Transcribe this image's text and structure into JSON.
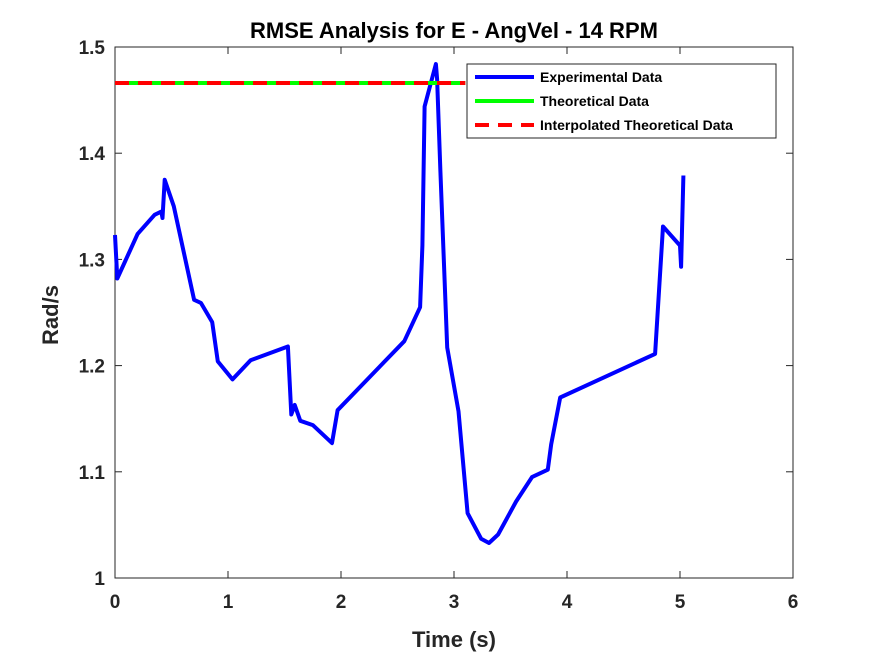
{
  "chart_data": {
    "type": "line",
    "title": "RMSE Analysis for E - AngVel - 14 RPM",
    "xlabel": "Time (s)",
    "ylabel": "Rad/s",
    "xlim": [
      0,
      6
    ],
    "ylim": [
      1,
      1.5
    ],
    "xticks": [
      "0",
      "1",
      "2",
      "3",
      "4",
      "5",
      "6"
    ],
    "yticks": [
      "1",
      "1.1",
      "1.2",
      "1.3",
      "1.4",
      "1.5"
    ],
    "grid": false,
    "legend_position": "top-right",
    "series": [
      {
        "name": "Experimental Data",
        "color": "#0000ff",
        "style": "solid",
        "x": [
          0.0,
          0.02,
          0.2,
          0.35,
          0.41,
          0.42,
          0.44,
          0.52,
          0.7,
          0.76,
          0.86,
          0.91,
          1.04,
          1.2,
          1.53,
          1.56,
          1.59,
          1.64,
          1.75,
          1.92,
          1.97,
          2.56,
          2.7,
          2.72,
          2.74,
          2.84,
          2.85,
          2.88,
          2.94,
          3.04,
          3.12,
          3.24,
          3.31,
          3.39,
          3.55,
          3.69,
          3.83,
          3.86,
          3.94,
          4.78,
          4.85,
          5.0,
          5.01,
          5.03
        ],
        "y": [
          1.323,
          1.282,
          1.324,
          1.342,
          1.345,
          1.339,
          1.375,
          1.35,
          1.262,
          1.259,
          1.241,
          1.204,
          1.187,
          1.205,
          1.218,
          1.154,
          1.163,
          1.148,
          1.144,
          1.127,
          1.158,
          1.223,
          1.255,
          1.313,
          1.444,
          1.484,
          1.47,
          1.383,
          1.217,
          1.157,
          1.061,
          1.037,
          1.033,
          1.041,
          1.072,
          1.095,
          1.102,
          1.126,
          1.17,
          1.211,
          1.331,
          1.313,
          1.293,
          1.379
        ]
      },
      {
        "name": "Theoretical Data",
        "color": "#00ff00",
        "style": "solid",
        "x": [
          0,
          3.1
        ],
        "y": [
          1.4661,
          1.4661
        ]
      },
      {
        "name": "Interpolated Theoretical Data",
        "color": "#ff0000",
        "style": "dashed",
        "x": [
          0,
          3.1
        ],
        "y": [
          1.4661,
          1.4661
        ]
      }
    ]
  }
}
